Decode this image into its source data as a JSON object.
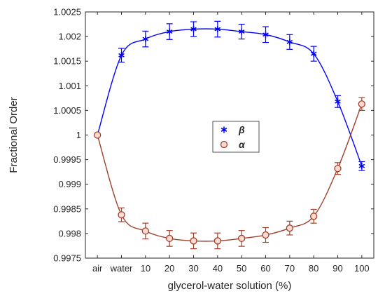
{
  "chart_data": {
    "type": "line",
    "title": "",
    "xlabel": "glycerol-water solution (%)",
    "ylabel": "Fractional Order",
    "categories": [
      "air",
      "water",
      "10",
      "20",
      "30",
      "40",
      "50",
      "60",
      "70",
      "80",
      "90",
      "100"
    ],
    "ylim": [
      0.9975,
      1.0025
    ],
    "yticks": [
      0.9975,
      0.998,
      0.9985,
      0.999,
      0.9995,
      1,
      1.0005,
      1.001,
      1.0015,
      1.002,
      1.0025
    ],
    "ytick_labels": [
      "0.9975",
      "0.998",
      "0.9985",
      "0.999",
      "0.9995",
      "1",
      "1.0005",
      "1.001",
      "1.0015",
      "1.002",
      "1.0025"
    ],
    "grid": false,
    "legend_position": "center",
    "series": [
      {
        "name": "β",
        "color": "#0000ff",
        "marker": "asterisk",
        "values": [
          1.0,
          1.00162,
          1.00195,
          1.0021,
          1.00215,
          1.00215,
          1.0021,
          1.00204,
          1.00189,
          1.00165,
          1.00068,
          0.99937
        ],
        "errors": [
          0,
          0.00014,
          0.00016,
          0.00016,
          0.00015,
          0.00016,
          0.00015,
          0.00016,
          0.00015,
          0.00015,
          0.00012,
          9e-05
        ]
      },
      {
        "name": "α",
        "color": "#a0402a",
        "marker": "circle",
        "values": [
          1.0,
          0.99838,
          0.99805,
          0.9979,
          0.99785,
          0.99785,
          0.9979,
          0.99797,
          0.99811,
          0.99835,
          0.99932,
          1.00063
        ],
        "errors": [
          0,
          0.00014,
          0.00016,
          0.00016,
          0.00016,
          0.00016,
          0.00016,
          0.00015,
          0.00014,
          0.00014,
          0.00012,
          0.00013
        ]
      }
    ]
  }
}
